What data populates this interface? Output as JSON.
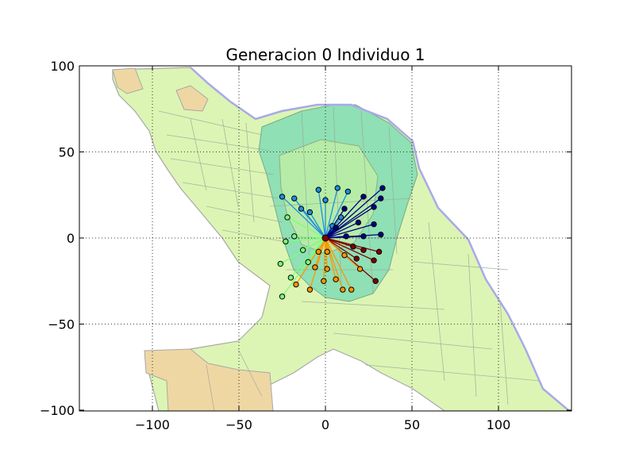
{
  "chart_data": {
    "type": "scatter",
    "title": "Generacion 0 Individuo 1",
    "xlabel": "",
    "ylabel": "",
    "xlim": [
      -100,
      100
    ],
    "ylim": [
      -100,
      100
    ],
    "xticks": [
      -100,
      -50,
      0,
      50,
      100
    ],
    "yticks": [
      100,
      50,
      0,
      -50,
      -100
    ],
    "xtick_labels": [
      "−100",
      "−50",
      "0",
      "50",
      "100"
    ],
    "ytick_labels": [
      "100",
      "50",
      "0",
      "−50",
      "−100"
    ],
    "grid": true,
    "background": "map of districts",
    "depot": [
      0,
      0
    ],
    "series": [
      {
        "color": "#1e8fdc",
        "points": [
          [
            -25,
            24
          ],
          [
            -18,
            23
          ],
          [
            -14,
            17
          ],
          [
            -9,
            15
          ],
          [
            -4,
            28
          ],
          [
            0,
            22
          ],
          [
            4,
            7
          ],
          [
            7,
            29
          ],
          [
            13,
            27
          ],
          [
            9,
            12
          ]
        ]
      },
      {
        "color": "#00007f",
        "points": [
          [
            22,
            24
          ],
          [
            33,
            29
          ],
          [
            32,
            23
          ],
          [
            28,
            18
          ],
          [
            11,
            17
          ],
          [
            6,
            6
          ],
          [
            12,
            1
          ],
          [
            22,
            1
          ],
          [
            32,
            2
          ],
          [
            19,
            9
          ],
          [
            28,
            8
          ]
        ]
      },
      {
        "color": "#7f0000",
        "points": [
          [
            16,
            -5
          ],
          [
            22,
            -7
          ],
          [
            31,
            -8
          ],
          [
            18,
            -12
          ],
          [
            28,
            -13
          ],
          [
            29,
            -25
          ]
        ]
      },
      {
        "color": "#ff9600",
        "points": [
          [
            -4,
            -8
          ],
          [
            -6,
            -17
          ],
          [
            -9,
            -30
          ],
          [
            -17,
            -27
          ],
          [
            1,
            -18
          ],
          [
            6,
            -24
          ],
          [
            15,
            -30
          ],
          [
            10,
            -30
          ],
          [
            -1,
            -25
          ],
          [
            1,
            -8
          ],
          [
            11,
            -10
          ],
          [
            20,
            -18
          ]
        ]
      },
      {
        "color": "#7cff7a",
        "points": [
          [
            -22,
            12
          ],
          [
            -18,
            1
          ],
          [
            -23,
            -2
          ],
          [
            -13,
            -7
          ],
          [
            -26,
            -15
          ],
          [
            -10,
            -14
          ],
          [
            -20,
            -23
          ],
          [
            -25,
            -34
          ]
        ]
      }
    ]
  }
}
